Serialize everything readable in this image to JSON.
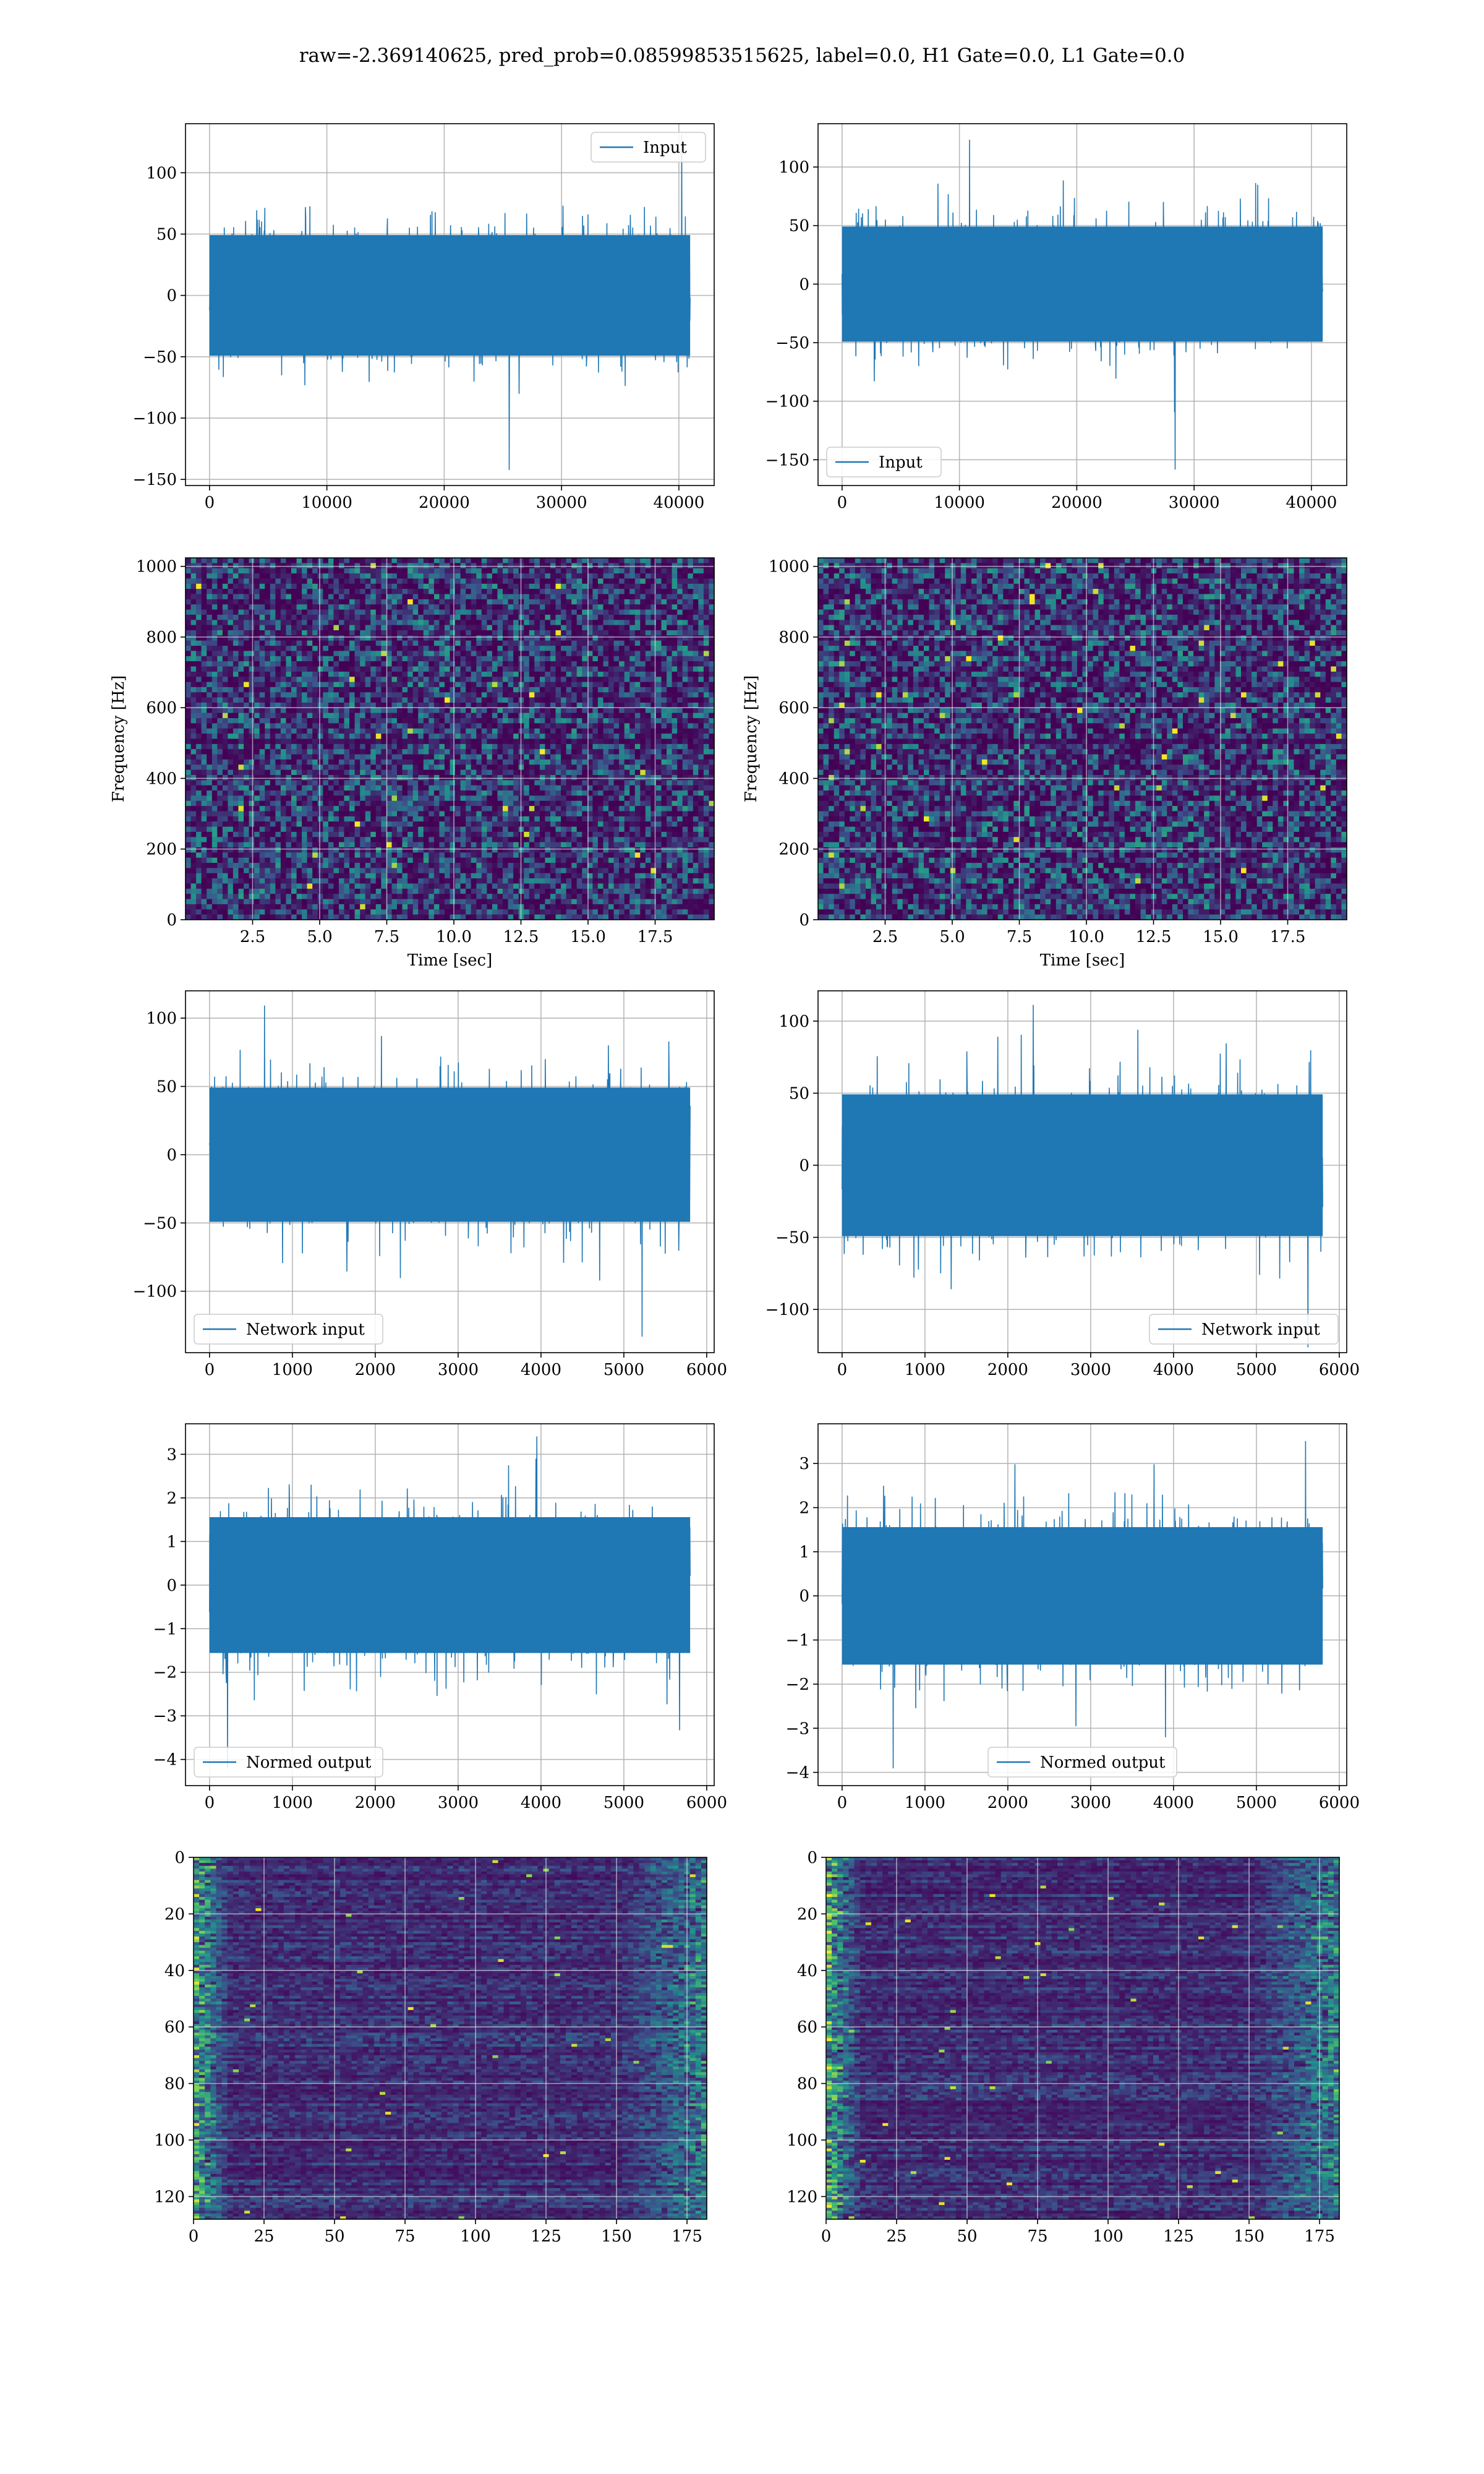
{
  "suptitle": "raw=-2.369140625, pred_prob=0.08599853515625, label=0.0, H1 Gate=0.0, L1 Gate=0.0",
  "colors": {
    "line": "#1f77b4",
    "grid": "#b0b0b0",
    "spine": "#000000",
    "viridis": [
      "#440154",
      "#3b528b",
      "#21918c",
      "#5ec962",
      "#fde725"
    ]
  },
  "chart_data": [
    {
      "type": "line",
      "id": "ts-h1",
      "series": [
        {
          "name": "Input",
          "length": 40960,
          "amplitude_typical": 60,
          "values_min": -142,
          "values_max": 131
        }
      ],
      "xlim": [
        -2048,
        43008
      ],
      "ylim": [
        -155,
        140
      ],
      "xticks": [
        0,
        10000,
        20000,
        30000,
        40000
      ],
      "yticks": [
        -150,
        -100,
        -50,
        0,
        50,
        100
      ],
      "legend": "upper right",
      "grid": true
    },
    {
      "type": "line",
      "id": "ts-l1",
      "series": [
        {
          "name": "Input",
          "length": 40960,
          "amplitude_typical": 60,
          "values_min": -158,
          "values_max": 123
        }
      ],
      "xlim": [
        -2048,
        43008
      ],
      "ylim": [
        -172,
        137
      ],
      "xticks": [
        0,
        10000,
        20000,
        30000,
        40000
      ],
      "yticks": [
        -150,
        -100,
        -50,
        0,
        50,
        100
      ],
      "legend": "lower left",
      "grid": true
    },
    {
      "type": "heatmap",
      "id": "spec-h1",
      "colormap": "viridis",
      "xlabel": "Time [sec]",
      "ylabel": "Frequency [Hz]",
      "xlim": [
        0,
        19.7
      ],
      "ylim": [
        0,
        1024
      ],
      "xticks": [
        "2.5",
        "5.0",
        "7.5",
        "10.0",
        "12.5",
        "15.0",
        "17.5"
      ],
      "yticks": [
        0,
        200,
        400,
        600,
        800,
        1000
      ],
      "dark_band_hz": 512,
      "grid": true
    },
    {
      "type": "heatmap",
      "id": "spec-l1",
      "colormap": "viridis",
      "xlabel": "Time [sec]",
      "ylabel": "Frequency [Hz]",
      "xlim": [
        0,
        19.7
      ],
      "ylim": [
        0,
        1024
      ],
      "xticks": [
        "2.5",
        "5.0",
        "7.5",
        "10.0",
        "12.5",
        "15.0",
        "17.5"
      ],
      "yticks": [
        0,
        200,
        400,
        600,
        800,
        1000
      ],
      "dark_band_hz": 512,
      "grid": true
    },
    {
      "type": "line",
      "id": "net-h1",
      "series": [
        {
          "name": "Network input",
          "length": 5800,
          "amplitude_typical": 60,
          "values_min": -133,
          "values_max": 109
        }
      ],
      "xlim": [
        -290,
        6090
      ],
      "ylim": [
        -145,
        120
      ],
      "xticks": [
        0,
        1000,
        2000,
        3000,
        4000,
        5000,
        6000
      ],
      "yticks": [
        -100,
        -50,
        0,
        50,
        100
      ],
      "legend": "lower left",
      "grid": true
    },
    {
      "type": "line",
      "id": "net-l1",
      "series": [
        {
          "name": "Network input",
          "length": 5800,
          "amplitude_typical": 60,
          "values_min": -126,
          "values_max": 111
        }
      ],
      "xlim": [
        -290,
        6090
      ],
      "ylim": [
        -130,
        121
      ],
      "xticks": [
        0,
        1000,
        2000,
        3000,
        4000,
        5000,
        6000
      ],
      "yticks": [
        -100,
        -50,
        0,
        50,
        100
      ],
      "legend": "lower right",
      "grid": true
    },
    {
      "type": "line",
      "id": "norm-h1",
      "series": [
        {
          "name": "Normed output",
          "length": 5800,
          "amplitude_typical": 1.9,
          "values_min": -4.2,
          "values_max": 3.4
        }
      ],
      "xlim": [
        -290,
        6090
      ],
      "ylim": [
        -4.6,
        3.7
      ],
      "xticks": [
        0,
        1000,
        2000,
        3000,
        4000,
        5000,
        6000
      ],
      "yticks": [
        -4,
        -3,
        -2,
        -1,
        0,
        1,
        2,
        3
      ],
      "legend": "lower left",
      "grid": true
    },
    {
      "type": "line",
      "id": "norm-l1",
      "series": [
        {
          "name": "Normed output",
          "length": 5800,
          "amplitude_typical": 1.9,
          "values_min": -3.9,
          "values_max": 3.5
        }
      ],
      "xlim": [
        -290,
        6090
      ],
      "ylim": [
        -4.3,
        3.9
      ],
      "xticks": [
        0,
        1000,
        2000,
        3000,
        4000,
        5000,
        6000
      ],
      "yticks": [
        -4,
        -3,
        -2,
        -1,
        0,
        1,
        2,
        3
      ],
      "legend": "lower center",
      "grid": true
    },
    {
      "type": "heatmap",
      "id": "feat-h1",
      "colormap": "viridis",
      "xlim": [
        0,
        182
      ],
      "ylim": [
        128,
        0
      ],
      "xticks": [
        0,
        25,
        50,
        75,
        100,
        125,
        150,
        175
      ],
      "yticks": [
        0,
        20,
        40,
        60,
        80,
        100,
        120
      ],
      "grid": true
    },
    {
      "type": "heatmap",
      "id": "feat-l1",
      "colormap": "viridis",
      "xlim": [
        0,
        182
      ],
      "ylim": [
        128,
        0
      ],
      "xticks": [
        0,
        25,
        50,
        75,
        100,
        125,
        150,
        175
      ],
      "yticks": [
        0,
        20,
        40,
        60,
        80,
        100,
        120
      ],
      "grid": true
    }
  ]
}
